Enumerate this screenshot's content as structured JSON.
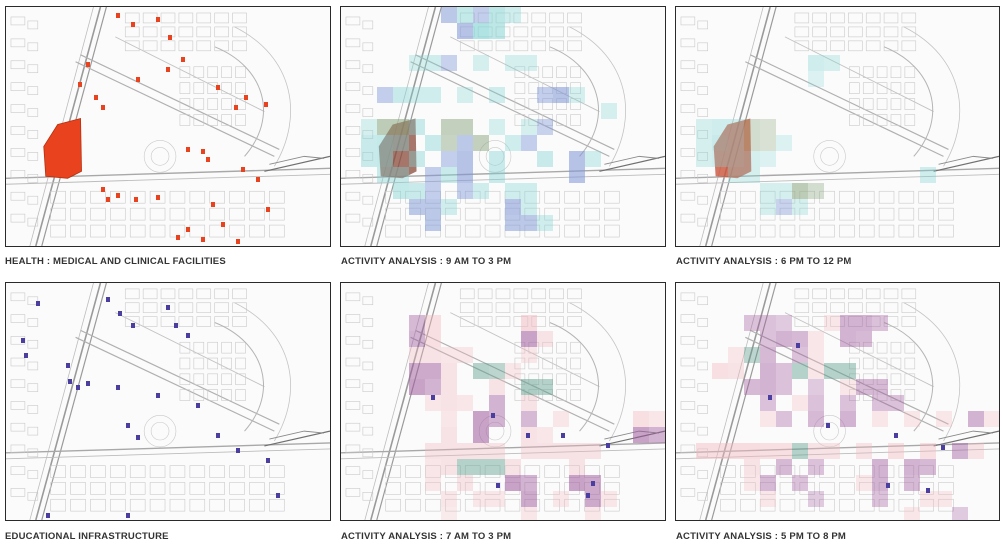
{
  "captions": {
    "p1": "HEALTH : MEDICAL AND CLINICAL FACILITIES",
    "p2": "ACTIVITY ANALYSIS : 9 AM TO 3 PM",
    "p3": "ACTIVITY ANALYSIS : 6 PM TO 12 PM",
    "p4": "EDUCATIONAL INFRASTRUCTURE",
    "p5": "ACTIVITY ANALYSIS : 7 AM TO 3 PM",
    "p6": "ACTIVITY ANALYSIS : 5 PM TO 8 PM"
  },
  "colors": {
    "health_fill": "#e8421f",
    "teal": "#7fd3d3",
    "blue": "#7d96d6",
    "olive": "#8aa57f",
    "pink": "#f2b7bd",
    "purple": "#a05a9e",
    "green_teal": "#5f9f8e",
    "edu_icon": "#4a3fa0"
  }
}
